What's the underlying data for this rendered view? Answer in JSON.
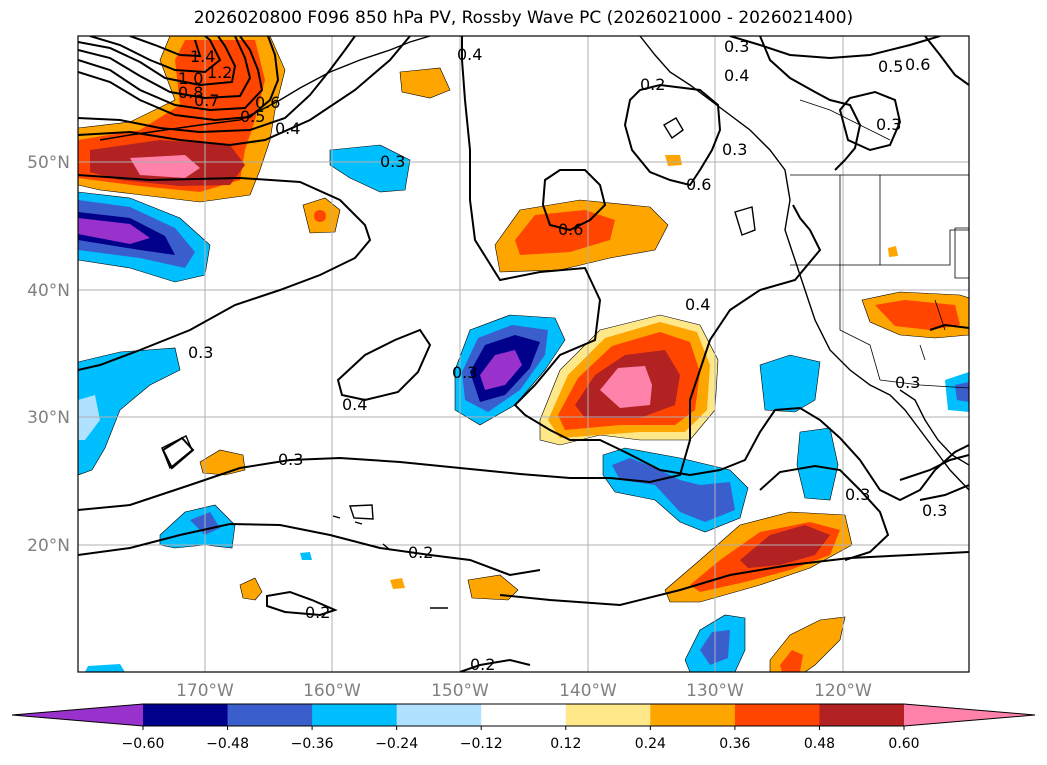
{
  "title": "2026020800 F096 850 hPa PV, Rossby Wave PC (2026021000 - 2026021400)",
  "lat_labels": [
    "50°N",
    "40°N",
    "30°N",
    "20°N"
  ],
  "lon_labels": [
    "170°W",
    "160°W",
    "150°W",
    "140°W",
    "130°W",
    "120°W"
  ],
  "colorbar": {
    "ticks": [
      "−0.60",
      "−0.48",
      "−0.36",
      "−0.24",
      "−0.12",
      "0.12",
      "0.24",
      "0.36",
      "0.48",
      "0.60"
    ],
    "colors": [
      "#9932cc",
      "#00008b",
      "#3a5fcd",
      "#00bfff",
      "#b0e2ff",
      "#ffffff",
      "#ffe88a",
      "#ffa500",
      "#ff4500",
      "#b22222",
      "#ff82ab"
    ]
  },
  "contour_labels": [
    "1.4",
    "1.2",
    "1.0",
    "0.8",
    "0.7",
    "0.6",
    "0.5",
    "0.4",
    "0.4",
    "0.3",
    "0.3",
    "0.5",
    "0.6",
    "0.4",
    "0.3",
    "0.6",
    "0.6",
    "0.3",
    "0.4",
    "0.4",
    "0.3",
    "0.3",
    "0.2",
    "0.2",
    "0.2",
    "0.3",
    "0.3",
    "0.2",
    "0.3",
    "0.3"
  ]
}
